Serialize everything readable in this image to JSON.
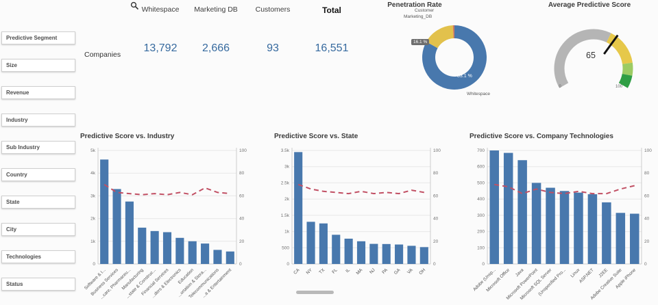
{
  "colors": {
    "bar": "#4878ad",
    "line": "#c14f63",
    "grid": "#e7e7e7",
    "axis": "#cccccc"
  },
  "sidebar": {
    "filters": [
      "Predictive Segment",
      "Size",
      "Revenue",
      "Industry",
      "Sub Industry",
      "Country",
      "State",
      "City",
      "Technologies",
      "Status"
    ]
  },
  "kpi": {
    "row_label": "Companies",
    "columns": [
      "Whitespace",
      "Marketing DB",
      "Customers",
      "Total"
    ],
    "values": [
      "13,792",
      "2,666",
      "93",
      "16,551"
    ]
  },
  "penetration": {
    "title": "Penetration Rate",
    "chip_label": "16.1 %",
    "major_label": "83.1 %",
    "callouts": {
      "customer": "Customer",
      "marketing_db": "Marketing_DB",
      "whitespace": "Whitespace"
    },
    "slices": [
      {
        "label": "Whitespace",
        "value": 83.1,
        "color": "#4878ad"
      },
      {
        "label": "Marketing_DB",
        "value": 16.1,
        "color": "#e2c14c"
      },
      {
        "label": "Customer",
        "value": 0.8,
        "color": "#cf7a5f"
      }
    ]
  },
  "gauge": {
    "title": "Average Predictive Score",
    "value": 65,
    "min": 0,
    "max": 100,
    "segments": [
      {
        "from": 0,
        "to": 61,
        "color": "#b5b5b5"
      },
      {
        "from": 61,
        "to": 84,
        "color": "#e6c84a"
      },
      {
        "from": 84,
        "to": 92,
        "color": "#9ccb63"
      },
      {
        "from": 92,
        "to": 100,
        "color": "#2f9e44"
      }
    ]
  },
  "chart_data": [
    {
      "type": "bar",
      "title": "Predictive Score vs. Industry",
      "categories": [
        "Software & I...",
        "Business Services",
        "...care, Pharmaceu...",
        "Manufacturing",
        "...state & Construc...",
        "Financial Services",
        "...ders & Electronics",
        "Education",
        "...ortation & Stora...",
        "Telecommunications",
        "...a & Entertainment"
      ],
      "series": [
        {
          "name": "Companies",
          "kind": "bar",
          "axis": "left",
          "values": [
            4600,
            3300,
            2750,
            1600,
            1450,
            1400,
            1150,
            1000,
            900,
            620,
            550
          ]
        },
        {
          "name": "Predictive Score",
          "kind": "line",
          "axis": "right",
          "values": [
            70,
            63,
            62,
            61,
            62,
            61,
            63,
            61,
            67,
            63,
            62
          ]
        }
      ],
      "left_axis": {
        "min": 0,
        "max": 5000,
        "step": 1000,
        "labels": [
          "0",
          "1k",
          "2k",
          "3k",
          "4k",
          "5k"
        ]
      },
      "right_axis": {
        "min": 0,
        "max": 100,
        "step": 20
      },
      "grid": true,
      "legend": "none"
    },
    {
      "type": "bar",
      "title": "Predictive Score vs. State",
      "categories": [
        "CA",
        "NY",
        "TX",
        "FL",
        "IL",
        "MA",
        "NJ",
        "PA",
        "GA",
        "VA",
        "OH"
      ],
      "series": [
        {
          "name": "Companies",
          "kind": "bar",
          "axis": "left",
          "values": [
            3450,
            1300,
            1250,
            900,
            780,
            700,
            620,
            615,
            600,
            560,
            520
          ]
        },
        {
          "name": "Predictive Score",
          "kind": "line",
          "axis": "right",
          "values": [
            70,
            66,
            64,
            63,
            62,
            64,
            62,
            63,
            62,
            65,
            63
          ]
        }
      ],
      "left_axis": {
        "min": 0,
        "max": 3500,
        "step": 500,
        "labels": [
          "0",
          "500",
          "1k",
          "1.5k",
          "2k",
          "2.5k",
          "3k",
          "3.5k"
        ]
      },
      "right_axis": {
        "min": 0,
        "max": 100,
        "step": 20
      },
      "grid": true,
      "legend": "none"
    },
    {
      "type": "bar",
      "title": "Predictive Score vs. Company Technologies",
      "categories": [
        "Adobe (Unsp...",
        "Microsoft Office",
        "Java",
        "Microsoft PowerPoint",
        "Microsoft SQL Server",
        "(Unspecified Pro...",
        "Linux",
        "ASP.NET",
        "J2EE",
        "Adobe Creative Suite",
        "Apple iPhone"
      ],
      "series": [
        {
          "name": "Companies",
          "kind": "bar",
          "axis": "left",
          "values": [
            700,
            685,
            640,
            500,
            470,
            450,
            440,
            430,
            380,
            315,
            310
          ]
        },
        {
          "name": "Predictive Score",
          "kind": "line",
          "axis": "right",
          "values": [
            70,
            68,
            62,
            66,
            63,
            62,
            64,
            62,
            62,
            66,
            69
          ]
        }
      ],
      "left_axis": {
        "min": 0,
        "max": 700,
        "step": 100,
        "labels": [
          "0",
          "100",
          "200",
          "300",
          "400",
          "500",
          "600",
          "700"
        ]
      },
      "right_axis": {
        "min": 0,
        "max": 100,
        "step": 20
      },
      "grid": true,
      "legend": "none"
    }
  ]
}
